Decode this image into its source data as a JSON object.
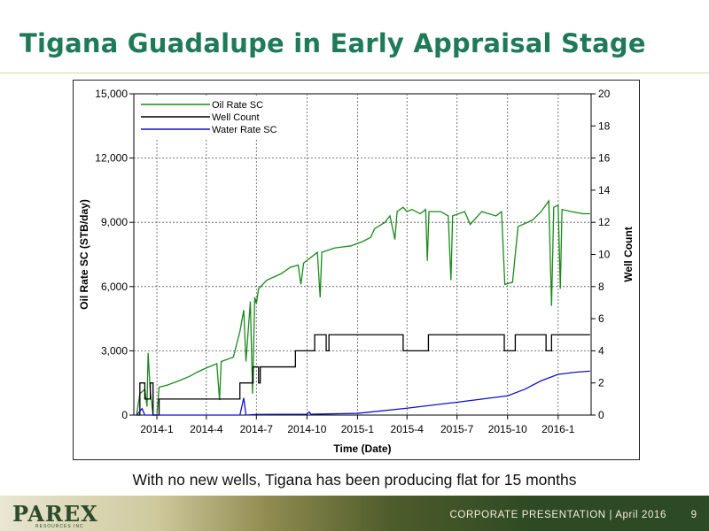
{
  "slide": {
    "title": "Tigana Guadalupe in Early Appraisal Stage",
    "caption": "With no new wells, Tigana has been producing flat for 15 months",
    "footer": "CORPORATE PRESENTATION | April 2016",
    "page": "9",
    "logo": "PAREX",
    "logo_sub": "RESOURCES INC"
  },
  "colors": {
    "oil": "#1a8a1a",
    "well": "#000000",
    "water": "#1010cc",
    "title": "#1f7a5a"
  },
  "chart_data": {
    "type": "line",
    "xlabel": "Time (Date)",
    "ylabel_left": "Oil Rate SC (STB/day)",
    "ylabel_right": "Well Count",
    "x_ticks": [
      "2014-1",
      "2014-4",
      "2014-7",
      "2014-10",
      "2015-1",
      "2015-4",
      "2015-7",
      "2015-10",
      "2016-1"
    ],
    "x_range": [
      "2013-11-20",
      "2016-03-01"
    ],
    "ylim_left": [
      0,
      15000
    ],
    "yticks_left": [
      "0",
      "3,000",
      "6,000",
      "9,000",
      "12,000",
      "15,000"
    ],
    "ylim_right": [
      0,
      20
    ],
    "yticks_right": [
      "0",
      "2",
      "4",
      "6",
      "8",
      "10",
      "12",
      "14",
      "16",
      "18",
      "20"
    ],
    "grid": true,
    "legend_position": "top-left",
    "series": [
      {
        "name": "Oil Rate SC",
        "axis": "left",
        "points": [
          [
            "2013-11-25",
            0
          ],
          [
            "2013-12-01",
            1000
          ],
          [
            "2013-12-10",
            1200
          ],
          [
            "2013-12-14",
            400
          ],
          [
            "2013-12-16",
            2900
          ],
          [
            "2013-12-20",
            1100
          ],
          [
            "2013-12-25",
            0
          ],
          [
            "2014-01-01",
            0
          ],
          [
            "2014-01-05",
            1300
          ],
          [
            "2014-01-20",
            1400
          ],
          [
            "2014-02-10",
            1600
          ],
          [
            "2014-03-01",
            1800
          ],
          [
            "2014-03-15",
            2000
          ],
          [
            "2014-04-01",
            2200
          ],
          [
            "2014-04-20",
            2400
          ],
          [
            "2014-04-25",
            700
          ],
          [
            "2014-04-28",
            2500
          ],
          [
            "2014-05-20",
            2700
          ],
          [
            "2014-06-01",
            3900
          ],
          [
            "2014-06-08",
            4900
          ],
          [
            "2014-06-12",
            2500
          ],
          [
            "2014-06-20",
            5300
          ],
          [
            "2014-06-24",
            1000
          ],
          [
            "2014-06-28",
            5500
          ],
          [
            "2014-07-01",
            5200
          ],
          [
            "2014-07-05",
            5900
          ],
          [
            "2014-07-20",
            6300
          ],
          [
            "2014-08-15",
            6600
          ],
          [
            "2014-09-01",
            6900
          ],
          [
            "2014-09-15",
            7000
          ],
          [
            "2014-09-20",
            6100
          ],
          [
            "2014-09-25",
            7100
          ],
          [
            "2014-10-05",
            7300
          ],
          [
            "2014-10-20",
            7600
          ],
          [
            "2014-10-25",
            5500
          ],
          [
            "2014-10-28",
            7600
          ],
          [
            "2014-11-20",
            7800
          ],
          [
            "2014-12-20",
            7900
          ],
          [
            "2015-01-10",
            8100
          ],
          [
            "2015-01-25",
            8300
          ],
          [
            "2015-02-01",
            8700
          ],
          [
            "2015-02-20",
            9000
          ],
          [
            "2015-03-01",
            9300
          ],
          [
            "2015-03-10",
            8200
          ],
          [
            "2015-03-14",
            9500
          ],
          [
            "2015-03-25",
            9700
          ],
          [
            "2015-04-01",
            9500
          ],
          [
            "2015-04-10",
            9600
          ],
          [
            "2015-04-25",
            9400
          ],
          [
            "2015-05-05",
            9600
          ],
          [
            "2015-05-08",
            7200
          ],
          [
            "2015-05-11",
            9500
          ],
          [
            "2015-06-01",
            9500
          ],
          [
            "2015-06-15",
            9300
          ],
          [
            "2015-06-20",
            6300
          ],
          [
            "2015-06-23",
            9300
          ],
          [
            "2015-07-15",
            9500
          ],
          [
            "2015-07-25",
            8900
          ],
          [
            "2015-08-15",
            9500
          ],
          [
            "2015-09-10",
            9300
          ],
          [
            "2015-09-20",
            9500
          ],
          [
            "2015-09-26",
            6100
          ],
          [
            "2015-10-10",
            6200
          ],
          [
            "2015-10-20",
            8800
          ],
          [
            "2015-11-15",
            9100
          ],
          [
            "2015-12-01",
            9500
          ],
          [
            "2015-12-15",
            10000
          ],
          [
            "2015-12-20",
            5100
          ],
          [
            "2015-12-24",
            9700
          ],
          [
            "2016-01-01",
            9800
          ],
          [
            "2016-01-05",
            5900
          ],
          [
            "2016-01-08",
            9600
          ],
          [
            "2016-01-25",
            9500
          ],
          [
            "2016-02-15",
            9400
          ],
          [
            "2016-02-28",
            9400
          ]
        ]
      },
      {
        "name": "Well Count",
        "axis": "right",
        "points": [
          [
            "2013-11-25",
            0
          ],
          [
            "2013-12-01",
            2
          ],
          [
            "2013-12-10",
            1
          ],
          [
            "2013-12-20",
            2
          ],
          [
            "2013-12-25",
            0
          ],
          [
            "2014-01-05",
            1
          ],
          [
            "2014-06-01",
            2
          ],
          [
            "2014-06-25",
            3
          ],
          [
            "2014-07-05",
            2
          ],
          [
            "2014-07-08",
            3
          ],
          [
            "2014-08-15",
            3
          ],
          [
            "2014-09-01",
            3
          ],
          [
            "2014-09-10",
            4
          ],
          [
            "2014-10-05",
            4
          ],
          [
            "2014-10-15",
            5
          ],
          [
            "2014-11-05",
            4
          ],
          [
            "2014-11-10",
            5
          ],
          [
            "2015-03-25",
            4
          ],
          [
            "2015-05-10",
            5
          ],
          [
            "2015-09-25",
            4
          ],
          [
            "2015-10-15",
            5
          ],
          [
            "2015-12-10",
            4
          ],
          [
            "2015-12-20",
            5
          ],
          [
            "2016-02-28",
            5
          ]
        ]
      },
      {
        "name": "Water Rate SC",
        "axis": "left",
        "points": [
          [
            "2013-11-25",
            0
          ],
          [
            "2013-12-05",
            300
          ],
          [
            "2013-12-10",
            0
          ],
          [
            "2014-06-01",
            0
          ],
          [
            "2014-06-08",
            800
          ],
          [
            "2014-06-12",
            0
          ],
          [
            "2014-07-01",
            30
          ],
          [
            "2014-10-01",
            40
          ],
          [
            "2014-10-05",
            150
          ],
          [
            "2014-10-08",
            40
          ],
          [
            "2015-01-01",
            80
          ],
          [
            "2015-04-01",
            320
          ],
          [
            "2015-07-01",
            600
          ],
          [
            "2015-10-01",
            900
          ],
          [
            "2015-11-01",
            1200
          ],
          [
            "2015-12-01",
            1600
          ],
          [
            "2016-01-01",
            1900
          ],
          [
            "2016-02-01",
            2000
          ],
          [
            "2016-02-28",
            2050
          ]
        ]
      }
    ]
  }
}
